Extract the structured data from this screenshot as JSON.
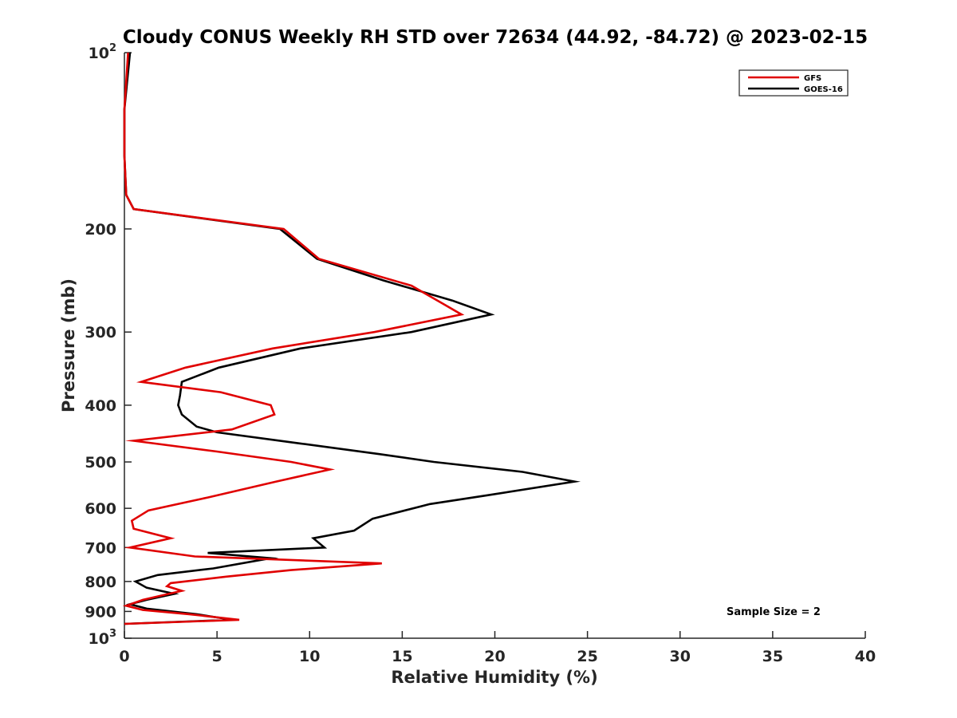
{
  "chart_data": {
    "type": "line",
    "title": "Cloudy CONUS Weekly RH STD over 72634 (44.92, -84.72) @ 2023-02-15",
    "xlabel": "Relative Humidity (%)",
    "ylabel": "Pressure (mb)",
    "xlim": [
      0,
      40
    ],
    "ylim": [
      100,
      1000
    ],
    "yscale": "log",
    "yreversed": true,
    "xticks": [
      "0",
      "5",
      "10",
      "15",
      "20",
      "25",
      "30",
      "35",
      "40"
    ],
    "yticks": [
      {
        "value": 100,
        "base": "10",
        "exp": "2"
      },
      {
        "value": 200,
        "label": "200"
      },
      {
        "value": 300,
        "label": "300"
      },
      {
        "value": 400,
        "label": "400"
      },
      {
        "value": 500,
        "label": "500"
      },
      {
        "value": 600,
        "label": "600"
      },
      {
        "value": 700,
        "label": "700"
      },
      {
        "value": 800,
        "label": "800"
      },
      {
        "value": 900,
        "label": "900"
      },
      {
        "value": 1000,
        "base": "10",
        "exp": "3"
      }
    ],
    "grid": false,
    "legend_position": "top-right",
    "annotation": "Sample Size = 2",
    "series": [
      {
        "name": "GFS",
        "color": "#e00000",
        "points": [
          [
            0.2,
            100
          ],
          [
            0.0,
            125
          ],
          [
            0.0,
            150
          ],
          [
            0.1,
            175
          ],
          [
            0.5,
            185
          ],
          [
            8.6,
            200
          ],
          [
            10.5,
            225
          ],
          [
            15.5,
            250
          ],
          [
            16.9,
            265
          ],
          [
            18.2,
            280
          ],
          [
            13.5,
            300
          ],
          [
            8.0,
            320
          ],
          [
            3.3,
            345
          ],
          [
            0.9,
            365
          ],
          [
            5.2,
            380
          ],
          [
            7.9,
            400
          ],
          [
            8.1,
            415
          ],
          [
            5.8,
            440
          ],
          [
            0.5,
            460
          ],
          [
            5.0,
            480
          ],
          [
            9.0,
            500
          ],
          [
            11.1,
            515
          ],
          [
            8.2,
            540
          ],
          [
            4.5,
            575
          ],
          [
            1.3,
            605
          ],
          [
            0.4,
            630
          ],
          [
            0.5,
            650
          ],
          [
            2.5,
            675
          ],
          [
            0.3,
            700
          ],
          [
            3.8,
            725
          ],
          [
            13.9,
            745
          ],
          [
            9.0,
            765
          ],
          [
            5.5,
            785
          ],
          [
            2.5,
            805
          ],
          [
            2.3,
            815
          ],
          [
            3.1,
            830
          ],
          [
            1.0,
            860
          ],
          [
            0.1,
            880
          ],
          [
            1.0,
            895
          ],
          [
            3.5,
            910
          ],
          [
            6.2,
            930
          ],
          [
            0.0,
            945
          ]
        ]
      },
      {
        "name": "GOES-16",
        "color": "#000000",
        "points": [
          [
            0.3,
            100
          ],
          [
            0.0,
            125
          ],
          [
            0.0,
            150
          ],
          [
            0.1,
            175
          ],
          [
            0.5,
            185
          ],
          [
            8.4,
            200
          ],
          [
            10.4,
            225
          ],
          [
            14.0,
            245
          ],
          [
            17.7,
            265
          ],
          [
            19.8,
            280
          ],
          [
            15.5,
            300
          ],
          [
            9.5,
            320
          ],
          [
            5.1,
            345
          ],
          [
            3.1,
            365
          ],
          [
            3.0,
            385
          ],
          [
            2.9,
            400
          ],
          [
            3.1,
            415
          ],
          [
            3.9,
            435
          ],
          [
            5.0,
            445
          ],
          [
            9.5,
            465
          ],
          [
            13.8,
            485
          ],
          [
            16.7,
            500
          ],
          [
            21.5,
            520
          ],
          [
            24.3,
            540
          ],
          [
            19.6,
            570
          ],
          [
            16.5,
            590
          ],
          [
            13.4,
            625
          ],
          [
            12.4,
            655
          ],
          [
            10.2,
            675
          ],
          [
            10.8,
            700
          ],
          [
            4.5,
            715
          ],
          [
            7.9,
            730
          ],
          [
            4.8,
            760
          ],
          [
            1.8,
            780
          ],
          [
            0.6,
            800
          ],
          [
            1.2,
            820
          ],
          [
            2.7,
            840
          ],
          [
            1.2,
            860
          ],
          [
            0.3,
            875
          ],
          [
            1.2,
            890
          ],
          [
            3.9,
            910
          ],
          [
            5.8,
            930
          ],
          [
            0.0,
            945
          ]
        ]
      }
    ]
  }
}
